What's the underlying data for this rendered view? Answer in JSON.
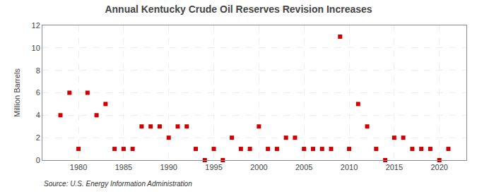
{
  "chart_data": {
    "type": "scatter",
    "title": "Annual Kentucky Crude Oil Reserves Revision Increases",
    "y_label": "Million Barrels",
    "annotations": [
      "Source: U.S. Energy Information Administration"
    ],
    "x": [
      1978,
      1979,
      1980,
      1981,
      1982,
      1983,
      1984,
      1985,
      1986,
      1987,
      1988,
      1989,
      1990,
      1991,
      1992,
      1993,
      1994,
      1995,
      1996,
      1997,
      1998,
      1999,
      2000,
      2001,
      2002,
      2003,
      2004,
      2005,
      2006,
      2007,
      2008,
      2009,
      2010,
      2011,
      2012,
      2013,
      2014,
      2015,
      2016,
      2017,
      2018,
      2019,
      2020,
      2021
    ],
    "values": [
      4,
      6,
      1,
      6,
      4,
      5,
      1,
      1,
      1,
      3,
      3,
      3,
      2,
      3,
      3,
      1,
      0,
      1,
      0,
      2,
      1,
      1,
      3,
      1,
      1,
      2,
      2,
      1,
      1,
      1,
      1,
      11,
      1,
      5,
      3,
      1,
      0,
      2,
      2,
      1,
      1,
      1,
      0,
      1
    ],
    "color": "#cc0000",
    "marker": "square",
    "xlim": [
      1976,
      2023
    ],
    "xticks": [
      1980,
      1985,
      1990,
      1995,
      2000,
      2005,
      2010,
      2015,
      2020
    ],
    "ylim": [
      0,
      12
    ],
    "yticks": [
      0,
      2,
      4,
      6,
      8,
      10,
      12
    ],
    "grid": true
  }
}
